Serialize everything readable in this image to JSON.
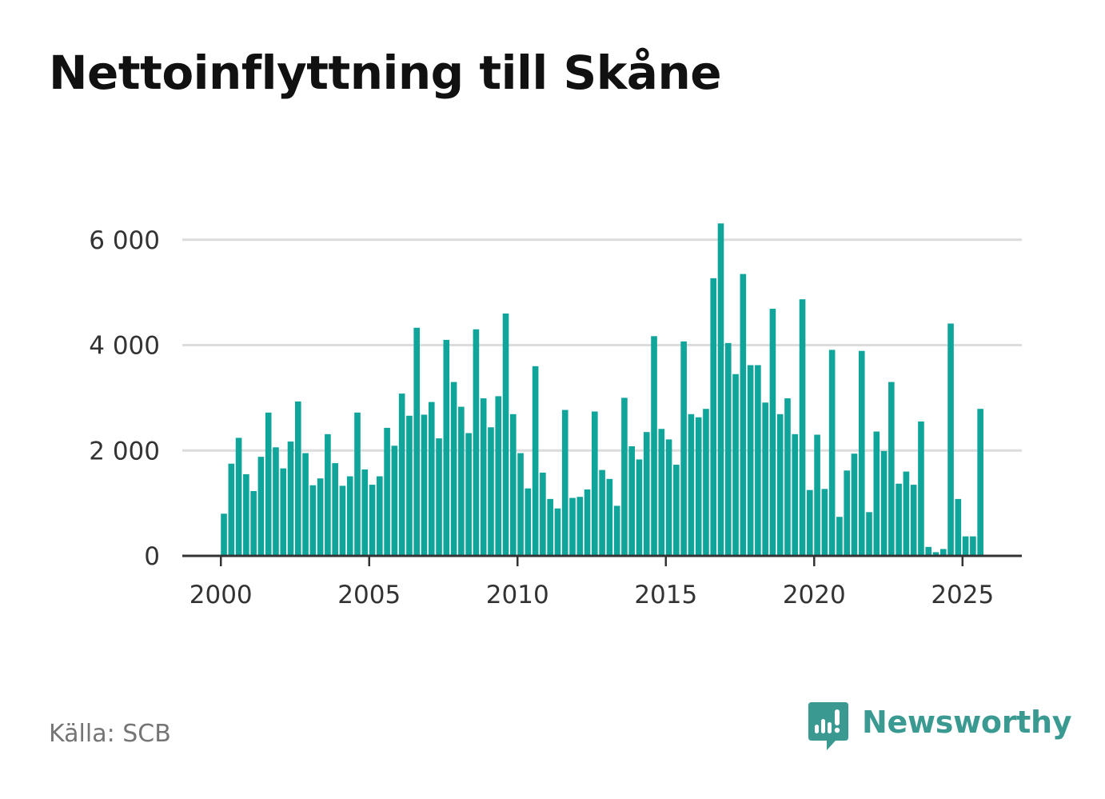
{
  "title": "Nettoinflyttning till Skåne",
  "source": "Källa: SCB",
  "brand": {
    "name": "Newsworthy",
    "color": "#3a9a92",
    "icon": "newsworthy-logo-icon"
  },
  "colors": {
    "bar": "#0fa59b",
    "grid": "#dcdcdc",
    "axis": "#333333",
    "text": "#333333"
  },
  "chart_data": {
    "type": "bar",
    "title": "Nettoinflyttning till Skåne",
    "xlabel": "",
    "ylabel": "",
    "frequency": "quarterly",
    "x_start": 2000,
    "xlim": [
      1998.7,
      2027.0
    ],
    "ylim": [
      0,
      6300
    ],
    "grid": true,
    "y_ticks": [
      0,
      2000,
      4000,
      6000
    ],
    "y_tick_labels": [
      "0",
      "2 000",
      "4 000",
      "6 000"
    ],
    "x_ticks": [
      2000,
      2005,
      2010,
      2015,
      2020,
      2025
    ],
    "x_tick_labels": [
      "2000",
      "2005",
      "2010",
      "2015",
      "2020",
      "2025"
    ],
    "values": [
      800,
      1750,
      2240,
      1550,
      1230,
      1880,
      2720,
      2060,
      1660,
      2170,
      2930,
      1950,
      1340,
      1470,
      2310,
      1760,
      1330,
      1510,
      2720,
      1640,
      1350,
      1510,
      2430,
      2090,
      3080,
      2660,
      4330,
      2680,
      2920,
      2230,
      4100,
      3300,
      2830,
      2330,
      4300,
      2990,
      2440,
      3030,
      4600,
      2690,
      1950,
      1280,
      3600,
      1580,
      1080,
      900,
      2770,
      1100,
      1120,
      1260,
      2740,
      1630,
      1460,
      950,
      3000,
      2080,
      1830,
      2350,
      4170,
      2410,
      2210,
      1730,
      4070,
      2690,
      2630,
      2790,
      5270,
      6310,
      4040,
      3450,
      5350,
      3620,
      3620,
      2910,
      4690,
      2690,
      2990,
      2310,
      4870,
      1250,
      2300,
      1270,
      3910,
      740,
      1620,
      1940,
      3890,
      830,
      2360,
      1990,
      3300,
      1370,
      1600,
      1350,
      2550,
      170,
      70,
      130,
      4410,
      1080,
      370,
      370,
      2790
    ]
  }
}
